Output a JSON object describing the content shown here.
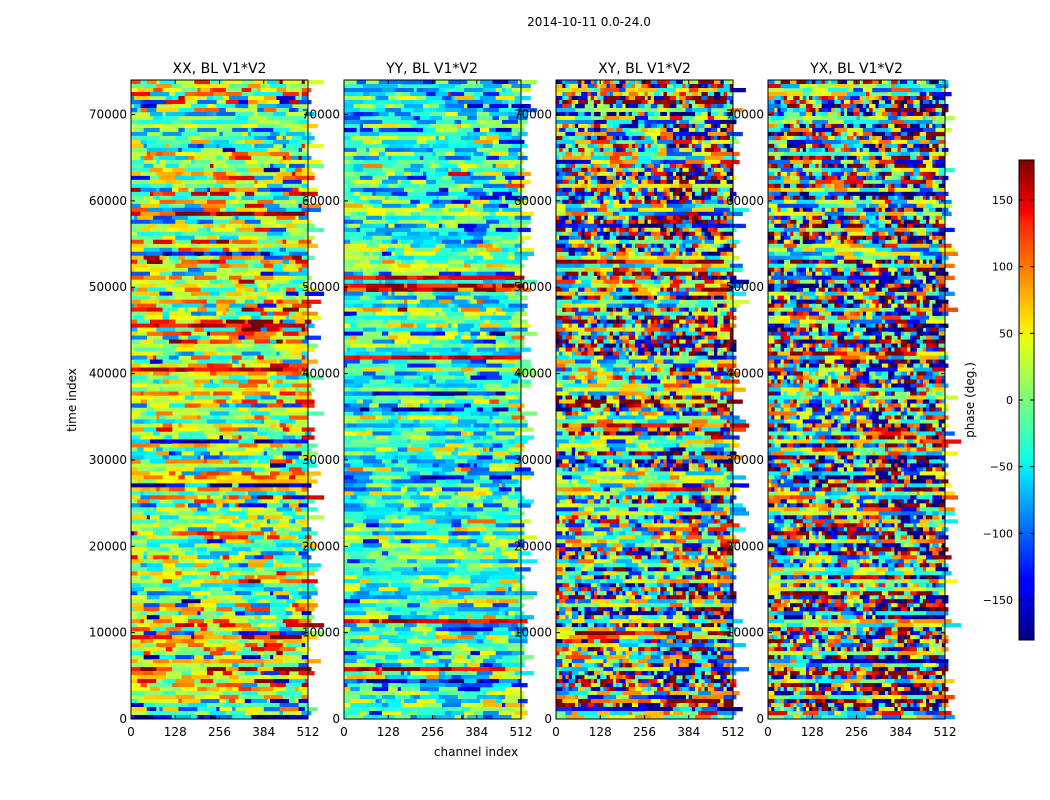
{
  "chart_data": {
    "type": "heatmap",
    "suptitle": "2014-10-11 0.0-24.0",
    "xlabel": "channel index",
    "ylabel": "time index",
    "xlim": [
      0,
      512
    ],
    "ylim": [
      0,
      74000
    ],
    "xticks": [
      0,
      128,
      256,
      384,
      512
    ],
    "yticks": [
      0,
      10000,
      20000,
      30000,
      40000,
      50000,
      60000,
      70000
    ],
    "panels": [
      {
        "title": "XX, BL V1*V2",
        "style": "xx"
      },
      {
        "title": "YY, BL V1*V2",
        "style": "yy"
      },
      {
        "title": "XY, BL V1*V2",
        "style": "xy"
      },
      {
        "title": "YX, BL V1*V2",
        "style": "yx"
      }
    ],
    "colorbar": {
      "label": "phase (deg.)",
      "range": [
        -180,
        180
      ],
      "ticks": [
        150,
        100,
        50,
        0,
        -50,
        -100,
        -150
      ],
      "tick_labels": [
        "150",
        "100",
        "50",
        "0",
        "−50",
        "−100",
        "−150"
      ],
      "colormap": "jet"
    }
  }
}
